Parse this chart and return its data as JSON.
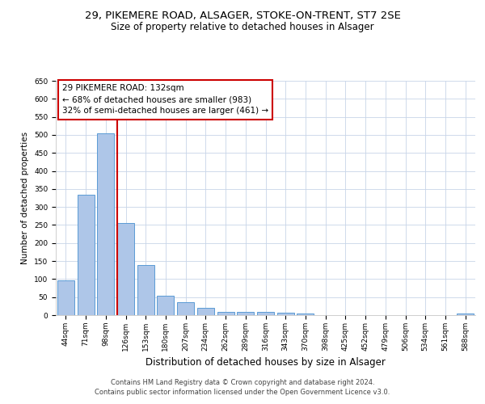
{
  "title1": "29, PIKEMERE ROAD, ALSAGER, STOKE-ON-TRENT, ST7 2SE",
  "title2": "Size of property relative to detached houses in Alsager",
  "xlabel": "Distribution of detached houses by size in Alsager",
  "ylabel": "Number of detached properties",
  "categories": [
    "44sqm",
    "71sqm",
    "98sqm",
    "126sqm",
    "153sqm",
    "180sqm",
    "207sqm",
    "234sqm",
    "262sqm",
    "289sqm",
    "316sqm",
    "343sqm",
    "370sqm",
    "398sqm",
    "425sqm",
    "452sqm",
    "479sqm",
    "506sqm",
    "534sqm",
    "561sqm",
    "588sqm"
  ],
  "values": [
    97,
    333,
    505,
    255,
    138,
    53,
    36,
    21,
    10,
    10,
    10,
    7,
    5,
    0,
    0,
    0,
    0,
    0,
    0,
    0,
    5
  ],
  "bar_color": "#aec6e8",
  "bar_edge_color": "#5b9bd5",
  "vline_color": "#cc0000",
  "vline_pos": 2.575,
  "annotation_line1": "29 PIKEMERE ROAD: 132sqm",
  "annotation_line2": "← 68% of detached houses are smaller (983)",
  "annotation_line3": "32% of semi-detached houses are larger (461) →",
  "box_facecolor": "#ffffff",
  "box_edgecolor": "#cc0000",
  "ylim_max": 650,
  "ytick_step": 50,
  "bg_color": "#ffffff",
  "grid_color": "#c8d4e8",
  "title1_fontsize": 9.5,
  "title2_fontsize": 8.5,
  "ylabel_fontsize": 7.5,
  "xlabel_fontsize": 8.5,
  "tick_fontsize": 6.5,
  "annot_fontsize": 7.5,
  "footer1": "Contains HM Land Registry data © Crown copyright and database right 2024.",
  "footer2": "Contains public sector information licensed under the Open Government Licence v3.0.",
  "footer_fontsize": 6.0
}
